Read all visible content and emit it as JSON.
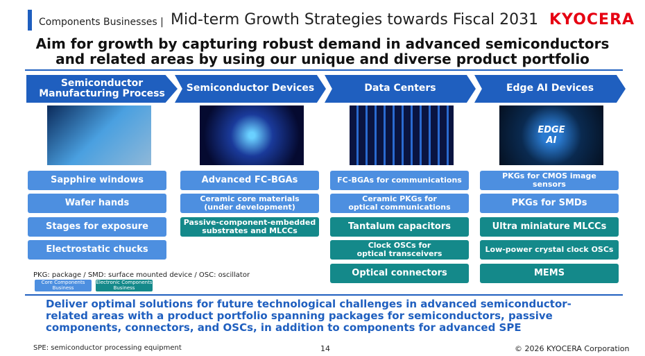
{
  "header": {
    "section": "Components Businesses |",
    "title": "Mid-term Growth Strategies towards Fiscal 2031",
    "logo": "KYOCERA"
  },
  "headline": [
    "Aim for growth by capturing robust demand in advanced semiconductors",
    "and related areas by using our unique and diverse product portfolio"
  ],
  "legend": {
    "items": [
      {
        "label": "Core Components\nBusiness",
        "color": "#4d8fe0"
      },
      {
        "label": "Electronic Components\nBusiness",
        "color": "#14898a"
      }
    ]
  },
  "columns": [
    {
      "heading": "Semiconductor\nManufacturing Process",
      "items": [
        {
          "text": "Sapphire windows",
          "legend": 0
        },
        {
          "text": "Wafer hands",
          "legend": 0
        },
        {
          "text": "Stages for exposure",
          "legend": 0
        },
        {
          "text": "Electrostatic chucks",
          "legend": 0
        }
      ]
    },
    {
      "heading": "Semiconductor Devices",
      "items": [
        {
          "text": "Advanced FC-BGAs",
          "legend": 0
        },
        {
          "text": "Ceramic core materials\n(under development)",
          "legend": 0
        },
        {
          "text": "Passive-component-embedded\nsubstrates and MLCCs",
          "legend": 1
        }
      ]
    },
    {
      "heading": "Data Centers",
      "items": [
        {
          "text": "FC-BGAs for communications",
          "legend": 0
        },
        {
          "text": "Ceramic PKGs for\noptical communications",
          "legend": 0
        },
        {
          "text": "Tantalum capacitors",
          "legend": 1
        },
        {
          "text": "Clock OSCs for\noptical transceivers",
          "legend": 1
        },
        {
          "text": "Optical connectors",
          "legend": 1
        }
      ]
    },
    {
      "heading": "Edge AI Devices",
      "image_text": "EDGE\nAI",
      "items": [
        {
          "text": "PKGs for CMOS image\nsensors",
          "legend": 0
        },
        {
          "text": "PKGs for SMDs",
          "legend": 0
        },
        {
          "text": "Ultra miniature MLCCs",
          "legend": 1
        },
        {
          "text": "Low-power crystal clock OSCs",
          "legend": 1
        },
        {
          "text": "MEMS",
          "legend": 1
        }
      ]
    }
  ],
  "note": "PKG: package / SMD: surface mounted device / OSC: oscillator",
  "message": "Deliver optimal solutions for future technological challenges in advanced semiconductor-related areas with a product portfolio spanning packages for semiconductors, passive components, connectors, and OSCs, in addition to components for advanced SPE",
  "footer": {
    "note": "SPE: semiconductor processing equipment",
    "page": "14",
    "copyright": "© 2026 KYOCERA Corporation"
  }
}
